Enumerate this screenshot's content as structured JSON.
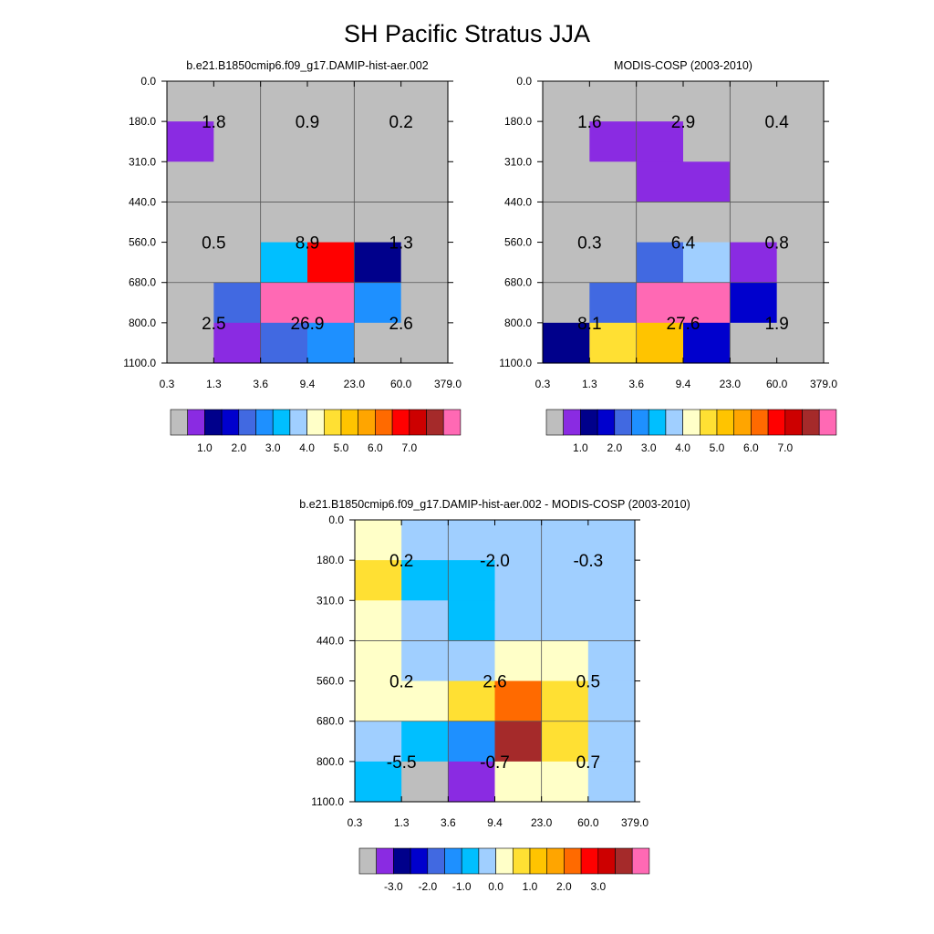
{
  "title": "SH Pacific Stratus JJA",
  "chart_data": [
    {
      "type": "heatmap",
      "title": "b.e21.B1850cmip6.f09_g17.DAMIP-hist-aer.002",
      "x_ticks": [
        "0.3",
        "1.3",
        "3.6",
        "9.4",
        "23.0",
        "60.0",
        "379.0"
      ],
      "y_ticks": [
        "0.0",
        "180.0",
        "310.0",
        "440.0",
        "560.0",
        "680.0",
        "800.0",
        "1100.0"
      ],
      "cell_classes": [
        [
          0,
          0,
          0,
          0,
          0,
          0
        ],
        [
          1,
          0,
          0,
          0,
          0,
          0
        ],
        [
          0,
          0,
          0,
          0,
          0,
          0
        ],
        [
          0,
          0,
          0,
          0,
          0,
          0
        ],
        [
          0,
          0,
          6,
          13,
          2,
          0
        ],
        [
          0,
          4,
          16,
          16,
          5,
          0
        ],
        [
          0,
          1,
          4,
          5,
          0,
          0
        ]
      ],
      "block_values": [
        [
          "1.8",
          "0.9",
          "0.2"
        ],
        [
          "0.5",
          "8.9",
          "1.3"
        ],
        [
          "2.5",
          "26.9",
          "2.6"
        ]
      ],
      "colorbar": {
        "colors": [
          "#bebebe",
          "#8a2be2",
          "#00008b",
          "#0000cd",
          "#4169e1",
          "#1e90ff",
          "#00bfff",
          "#a0cfff",
          "#ffffc8",
          "#ffe033",
          "#ffc400",
          "#ffa500",
          "#ff6a00",
          "#ff0000",
          "#cd0000",
          "#a52a2a",
          "#ff69b4"
        ],
        "labels": [
          "1.0",
          "2.0",
          "3.0",
          "4.0",
          "5.0",
          "6.0",
          "7.0"
        ]
      }
    },
    {
      "type": "heatmap",
      "title": "MODIS-COSP (2003-2010)",
      "x_ticks": [
        "0.3",
        "1.3",
        "3.6",
        "9.4",
        "23.0",
        "60.0",
        "379.0"
      ],
      "y_ticks": [
        "0.0",
        "180.0",
        "310.0",
        "440.0",
        "560.0",
        "680.0",
        "800.0",
        "1100.0"
      ],
      "cell_classes": [
        [
          0,
          0,
          0,
          0,
          0,
          0
        ],
        [
          0,
          1,
          1,
          0,
          0,
          0
        ],
        [
          0,
          0,
          1,
          1,
          0,
          0
        ],
        [
          0,
          0,
          0,
          0,
          0,
          0
        ],
        [
          0,
          0,
          4,
          7,
          1,
          0
        ],
        [
          0,
          4,
          16,
          16,
          3,
          0
        ],
        [
          2,
          9,
          10,
          3,
          0,
          0
        ]
      ],
      "block_values": [
        [
          "1.6",
          "2.9",
          "0.4"
        ],
        [
          "0.3",
          "6.4",
          "0.8"
        ],
        [
          "8.1",
          "27.6",
          "1.9"
        ]
      ],
      "colorbar": {
        "colors": [
          "#bebebe",
          "#8a2be2",
          "#00008b",
          "#0000cd",
          "#4169e1",
          "#1e90ff",
          "#00bfff",
          "#a0cfff",
          "#ffffc8",
          "#ffe033",
          "#ffc400",
          "#ffa500",
          "#ff6a00",
          "#ff0000",
          "#cd0000",
          "#a52a2a",
          "#ff69b4"
        ],
        "labels": [
          "1.0",
          "2.0",
          "3.0",
          "4.0",
          "5.0",
          "6.0",
          "7.0"
        ]
      }
    },
    {
      "type": "heatmap",
      "title": "b.e21.B1850cmip6.f09_g17.DAMIP-hist-aer.002 - MODIS-COSP (2003-2010)",
      "x_ticks": [
        "0.3",
        "1.3",
        "3.6",
        "9.4",
        "23.0",
        "60.0",
        "379.0"
      ],
      "y_ticks": [
        "0.0",
        "180.0",
        "310.0",
        "440.0",
        "560.0",
        "680.0",
        "800.0",
        "1100.0"
      ],
      "cell_classes": [
        [
          8,
          7,
          7,
          7,
          7,
          7
        ],
        [
          9,
          6,
          6,
          7,
          7,
          7
        ],
        [
          8,
          7,
          6,
          7,
          7,
          7
        ],
        [
          8,
          7,
          7,
          8,
          8,
          7
        ],
        [
          8,
          8,
          9,
          12,
          9,
          7
        ],
        [
          7,
          6,
          5,
          15,
          9,
          7
        ],
        [
          6,
          0,
          1,
          8,
          8,
          7
        ]
      ],
      "block_values": [
        [
          "0.2",
          "-2.0",
          "-0.3"
        ],
        [
          "0.2",
          "2.6",
          "0.5"
        ],
        [
          "-5.5",
          "-0.7",
          "0.7"
        ]
      ],
      "colorbar": {
        "colors": [
          "#bebebe",
          "#8a2be2",
          "#00008b",
          "#0000cd",
          "#4169e1",
          "#1e90ff",
          "#00bfff",
          "#a0cfff",
          "#ffffc8",
          "#ffe033",
          "#ffc400",
          "#ffa500",
          "#ff6a00",
          "#ff0000",
          "#cd0000",
          "#a52a2a",
          "#ff69b4"
        ],
        "labels": [
          "-3.0",
          "-2.0",
          "-1.0",
          "0.0",
          "1.0",
          "2.0",
          "3.0"
        ]
      }
    }
  ]
}
